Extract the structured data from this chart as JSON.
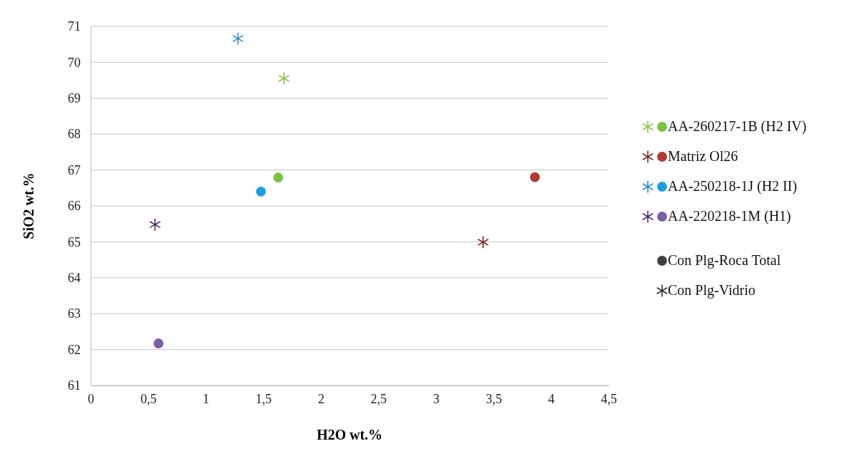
{
  "chart_data": {
    "type": "scatter",
    "xlabel": "H2O  wt.%",
    "ylabel": "SiO2 wt.%",
    "xlim": [
      0,
      4.5
    ],
    "xticks": [
      0,
      {
        "value": 0.5,
        "label": "0,5"
      },
      1,
      {
        "value": 1.5,
        "label": "1,5"
      },
      2,
      {
        "value": 2.5,
        "label": "2,5"
      },
      3,
      {
        "value": 3.5,
        "label": "3,5"
      },
      4,
      {
        "value": 4.5,
        "label": "4,5"
      }
    ],
    "ylim": [
      61,
      71
    ],
    "yticks": [
      61,
      62,
      63,
      64,
      65,
      66,
      67,
      68,
      69,
      70,
      71
    ],
    "grid": "y",
    "legend": "right",
    "series": [
      {
        "color": "#8bc34a",
        "marker": "cross",
        "x": [
          1.68
        ],
        "values": [
          69.55
        ]
      },
      {
        "name": "AA-260217-1B (H2 IV)",
        "color": "#7cc242",
        "marker": "circle",
        "x": [
          1.63
        ],
        "values": [
          66.79
        ]
      },
      {
        "color": "#7a2a2a",
        "marker": "cross",
        "x": [
          3.41
        ],
        "values": [
          64.99
        ]
      },
      {
        "name": "Matriz Ol26",
        "color": "#b03a34",
        "marker": "circle",
        "x": [
          3.86
        ],
        "values": [
          66.8
        ]
      },
      {
        "color": "#2a8ccc",
        "marker": "cross",
        "x": [
          1.28
        ],
        "values": [
          70.66
        ]
      },
      {
        "name": "AA-250218-1J (H2 II)",
        "color": "#1aa0e0",
        "marker": "circle",
        "x": [
          1.48
        ],
        "values": [
          66.4
        ]
      },
      {
        "color": "#4b2d6a",
        "marker": "cross",
        "x": [
          0.56
        ],
        "values": [
          65.48
        ]
      },
      {
        "name": "AA-220218-1M (H1)",
        "color": "#7d5fa6",
        "marker": "circle",
        "x": [
          0.59
        ],
        "values": [
          62.17
        ]
      },
      {
        "name": "Con Plg-Roca Total",
        "color": "#404040",
        "marker": "circle"
      },
      {
        "name": "Con Plg-Vidrio",
        "color": "#303030",
        "marker": "cross"
      }
    ]
  }
}
